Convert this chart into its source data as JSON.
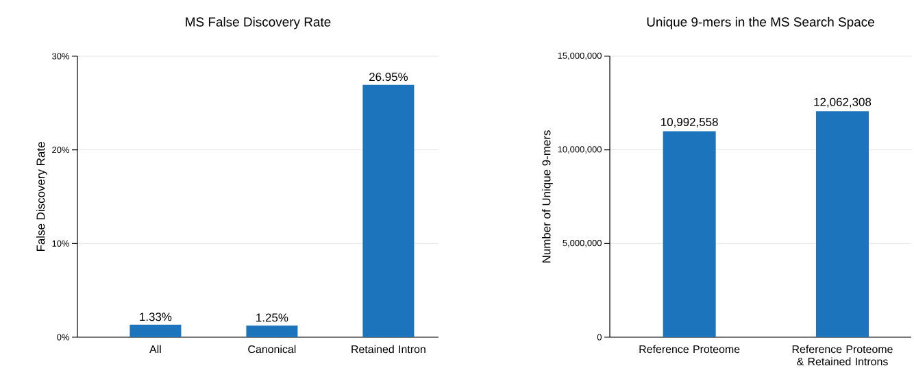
{
  "chart_data": [
    {
      "type": "bar",
      "title": "MS False Discovery Rate",
      "ylabel": "False Discovery Rate",
      "categories": [
        "All",
        "Canonical",
        "Retained Intron"
      ],
      "values": [
        1.33,
        1.25,
        26.95
      ],
      "value_labels": [
        "1.33%",
        "1.25%",
        "26.95%"
      ],
      "color": "#1c75bc",
      "ylim": [
        0,
        30
      ],
      "yticks": [
        {
          "value": 0,
          "label": "0%"
        },
        {
          "value": 10,
          "label": "10%"
        },
        {
          "value": 20,
          "label": "20%"
        },
        {
          "value": 30,
          "label": "30%"
        }
      ],
      "grid": "y"
    },
    {
      "type": "bar",
      "title": "Unique 9-mers in the MS Search Space",
      "ylabel": "Number of Unique 9-mers",
      "categories": [
        "Reference Proteome",
        "Reference Proteome & Retained Introns"
      ],
      "values": [
        10992558,
        12062308
      ],
      "value_labels": [
        "10,992,558",
        "12,062,308"
      ],
      "color": "#1c75bc",
      "ylim": [
        0,
        15000000
      ],
      "yticks": [
        {
          "value": 0,
          "label": "0"
        },
        {
          "value": 5000000,
          "label": "5,000,000"
        },
        {
          "value": 10000000,
          "label": "10,000,000"
        },
        {
          "value": 15000000,
          "label": "15,000,000"
        }
      ],
      "grid": "y"
    }
  ]
}
